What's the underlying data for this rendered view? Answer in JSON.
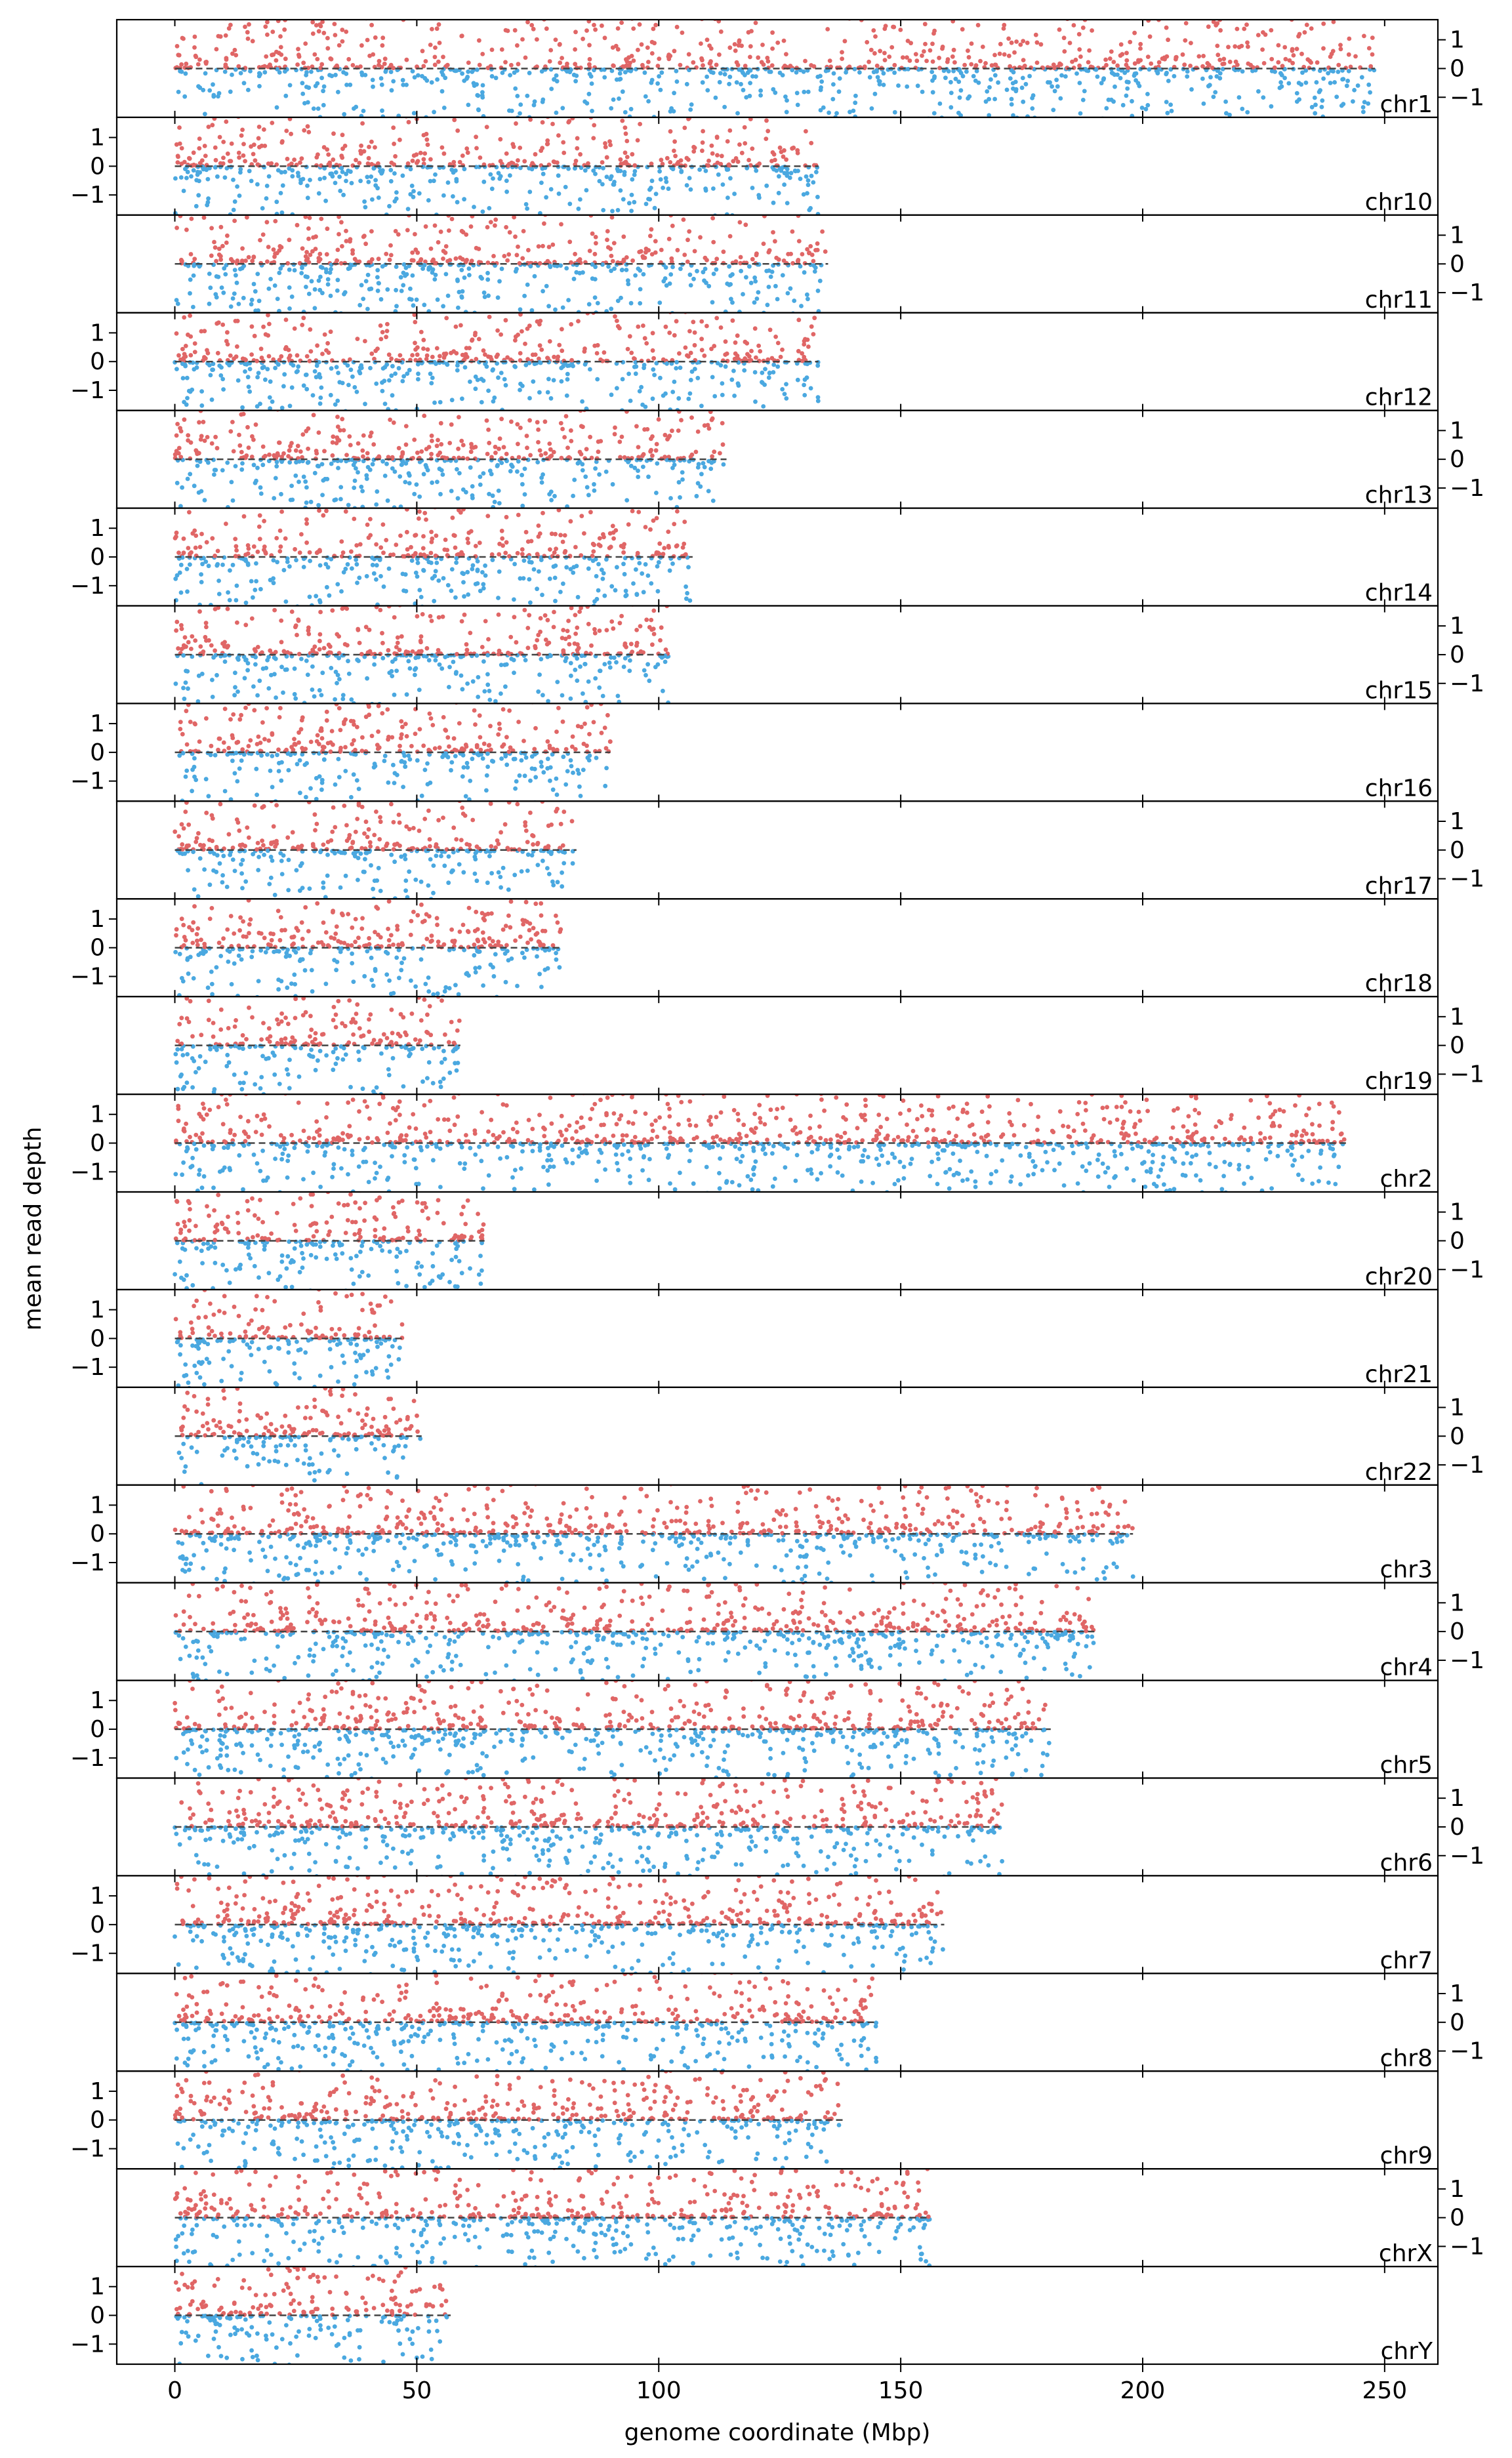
{
  "chart_data": {
    "type": "scatter",
    "xlabel": "genome coordinate (Mbp)",
    "ylabel": "mean read depth",
    "xlim": [
      -12,
      261
    ],
    "ylim": [
      -1.7,
      1.7
    ],
    "x_ticks": [
      0,
      50,
      100,
      150,
      200,
      250
    ],
    "y_ticks": [
      1,
      0,
      -1
    ],
    "y_tick_labels": [
      "1",
      "0",
      "−1"
    ],
    "grid": false,
    "series_colors": {
      "above_zero": "#e06666",
      "below_zero": "#4aa8e0",
      "baseline": "#444444"
    },
    "panels": [
      {
        "label": "chr1",
        "length": 248,
        "y_axis": "right"
      },
      {
        "label": "chr10",
        "length": 133,
        "y_axis": "left"
      },
      {
        "label": "chr11",
        "length": 135,
        "y_axis": "right"
      },
      {
        "label": "chr12",
        "length": 133,
        "y_axis": "left"
      },
      {
        "label": "chr13",
        "length": 114,
        "y_axis": "right"
      },
      {
        "label": "chr14",
        "length": 107,
        "y_axis": "left"
      },
      {
        "label": "chr15",
        "length": 102,
        "y_axis": "right"
      },
      {
        "label": "chr16",
        "length": 90,
        "y_axis": "left"
      },
      {
        "label": "chr17",
        "length": 83,
        "y_axis": "right"
      },
      {
        "label": "chr18",
        "length": 80,
        "y_axis": "left"
      },
      {
        "label": "chr19",
        "length": 59,
        "y_axis": "right"
      },
      {
        "label": "chr2",
        "length": 242,
        "y_axis": "left"
      },
      {
        "label": "chr20",
        "length": 64,
        "y_axis": "right"
      },
      {
        "label": "chr21",
        "length": 47,
        "y_axis": "left"
      },
      {
        "label": "chr22",
        "length": 51,
        "y_axis": "right"
      },
      {
        "label": "chr3",
        "length": 198,
        "y_axis": "left"
      },
      {
        "label": "chr4",
        "length": 190,
        "y_axis": "right"
      },
      {
        "label": "chr5",
        "length": 181,
        "y_axis": "left"
      },
      {
        "label": "chr6",
        "length": 171,
        "y_axis": "right"
      },
      {
        "label": "chr7",
        "length": 159,
        "y_axis": "left"
      },
      {
        "label": "chr8",
        "length": 145,
        "y_axis": "right"
      },
      {
        "label": "chr9",
        "length": 138,
        "y_axis": "left"
      },
      {
        "label": "chrX",
        "length": 156,
        "y_axis": "right"
      },
      {
        "label": "chrY",
        "length": 57,
        "y_axis": "left"
      }
    ]
  }
}
